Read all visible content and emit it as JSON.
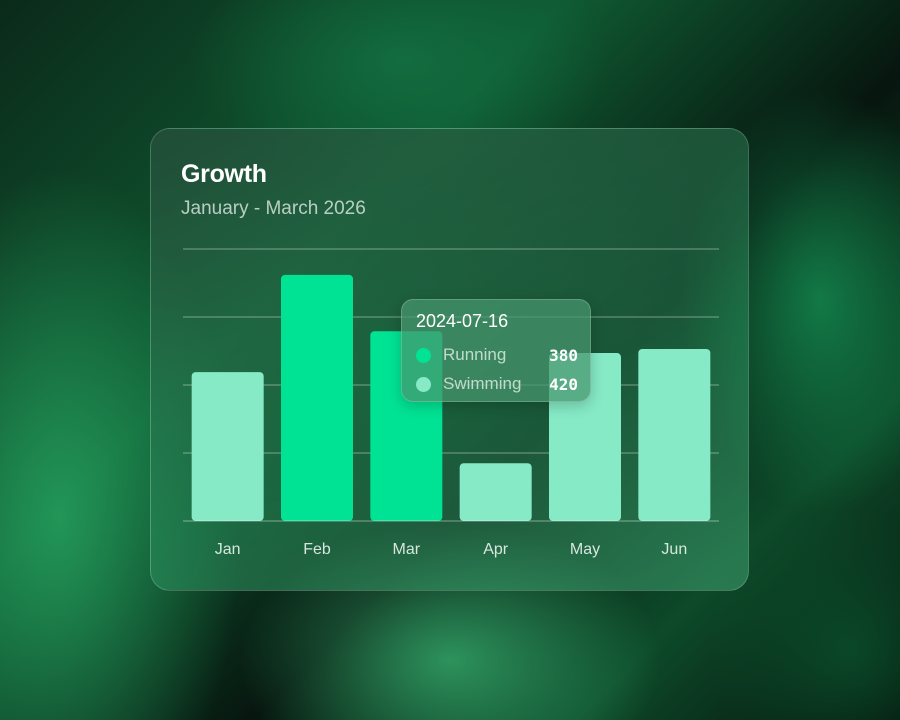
{
  "chart_data": {
    "type": "bar",
    "title": "Growth",
    "subtitle": "January - March 2026",
    "categories": [
      "Jan",
      "Feb",
      "Mar",
      "Apr",
      "May",
      "Jun"
    ],
    "values": [
      219,
      362,
      279,
      85,
      247,
      253
    ],
    "ylim": [
      0,
      400
    ],
    "grid": true,
    "bar_colors": [
      "#86eac7",
      "#00e394",
      "#00e394",
      "#86eac7",
      "#86eac7",
      "#86eac7"
    ],
    "tooltip": {
      "date": "2024-07-16",
      "items": [
        {
          "name": "Running",
          "value": "380",
          "color": "#00e394"
        },
        {
          "name": "Swimming",
          "value": "420",
          "color": "#86eac7"
        }
      ]
    }
  }
}
